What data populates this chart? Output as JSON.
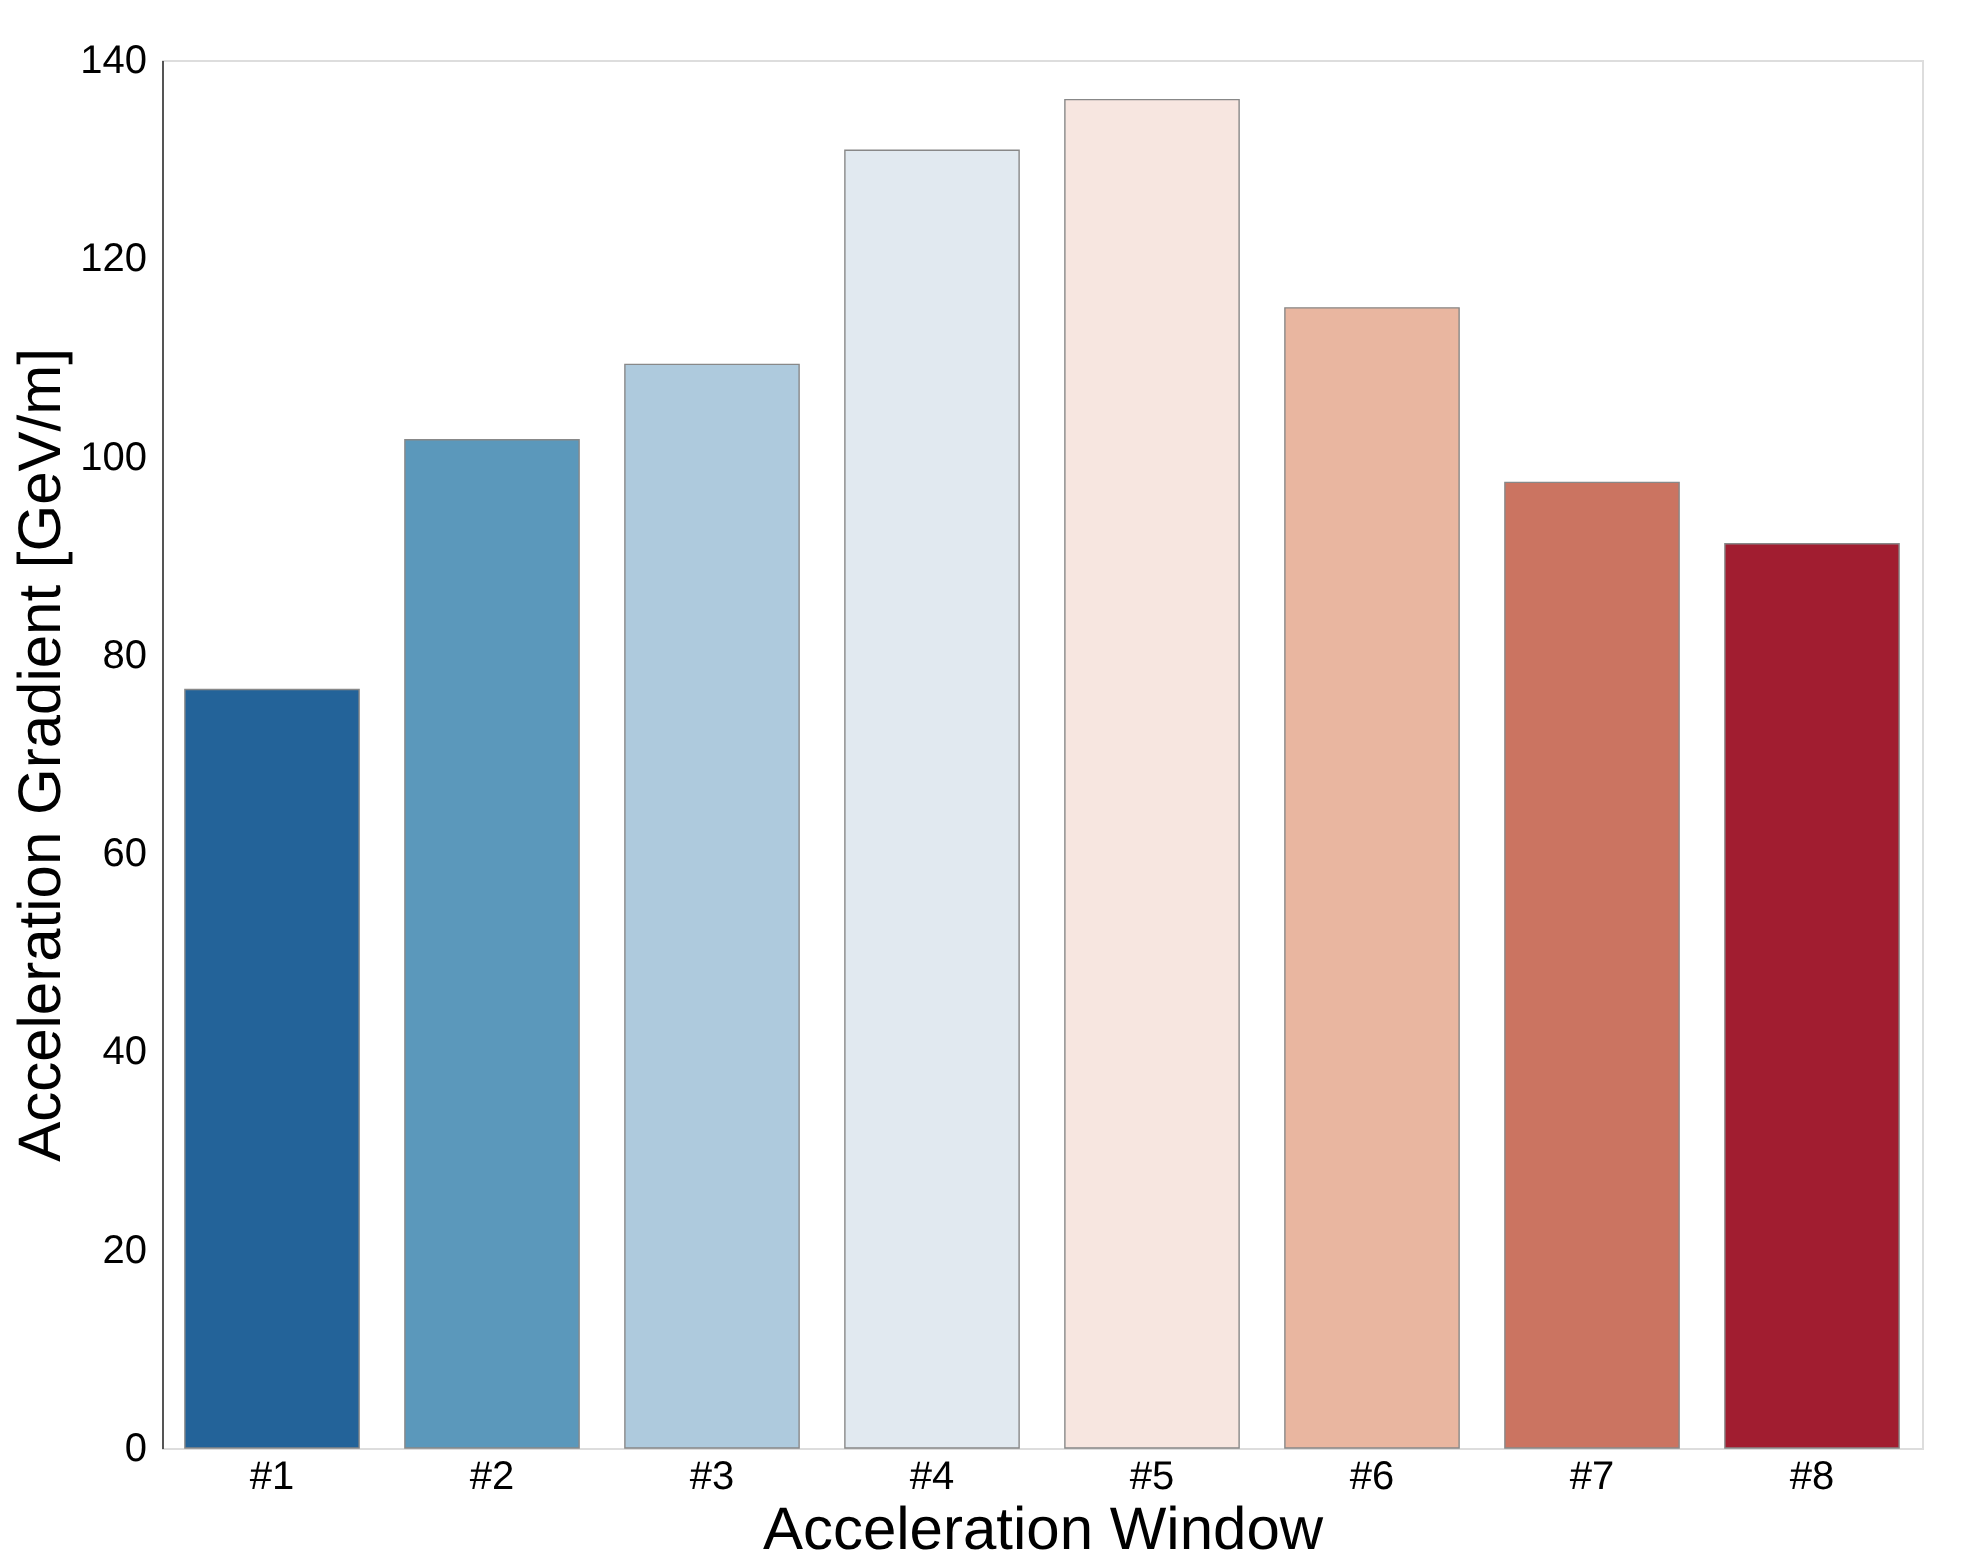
{
  "chart_data": {
    "type": "bar",
    "xlabel": "Acceleration Window",
    "ylabel": "Acceleration Gradient [GeV/m]",
    "categories": [
      "#1",
      "#2",
      "#3",
      "#4",
      "#5",
      "#6",
      "#7",
      "#8"
    ],
    "values": [
      76.5,
      101.7,
      109.3,
      130.9,
      136.0,
      115.0,
      97.4,
      91.2
    ],
    "colors": [
      "#236399",
      "#5b98bb",
      "#aecadd",
      "#e1e9f0",
      "#f7e6e0",
      "#e9b6a0",
      "#cb7461",
      "#a11d30"
    ],
    "ylim": [
      0,
      140
    ],
    "yticks": [
      0,
      20,
      40,
      60,
      80,
      100,
      120,
      140
    ],
    "grid": false
  }
}
